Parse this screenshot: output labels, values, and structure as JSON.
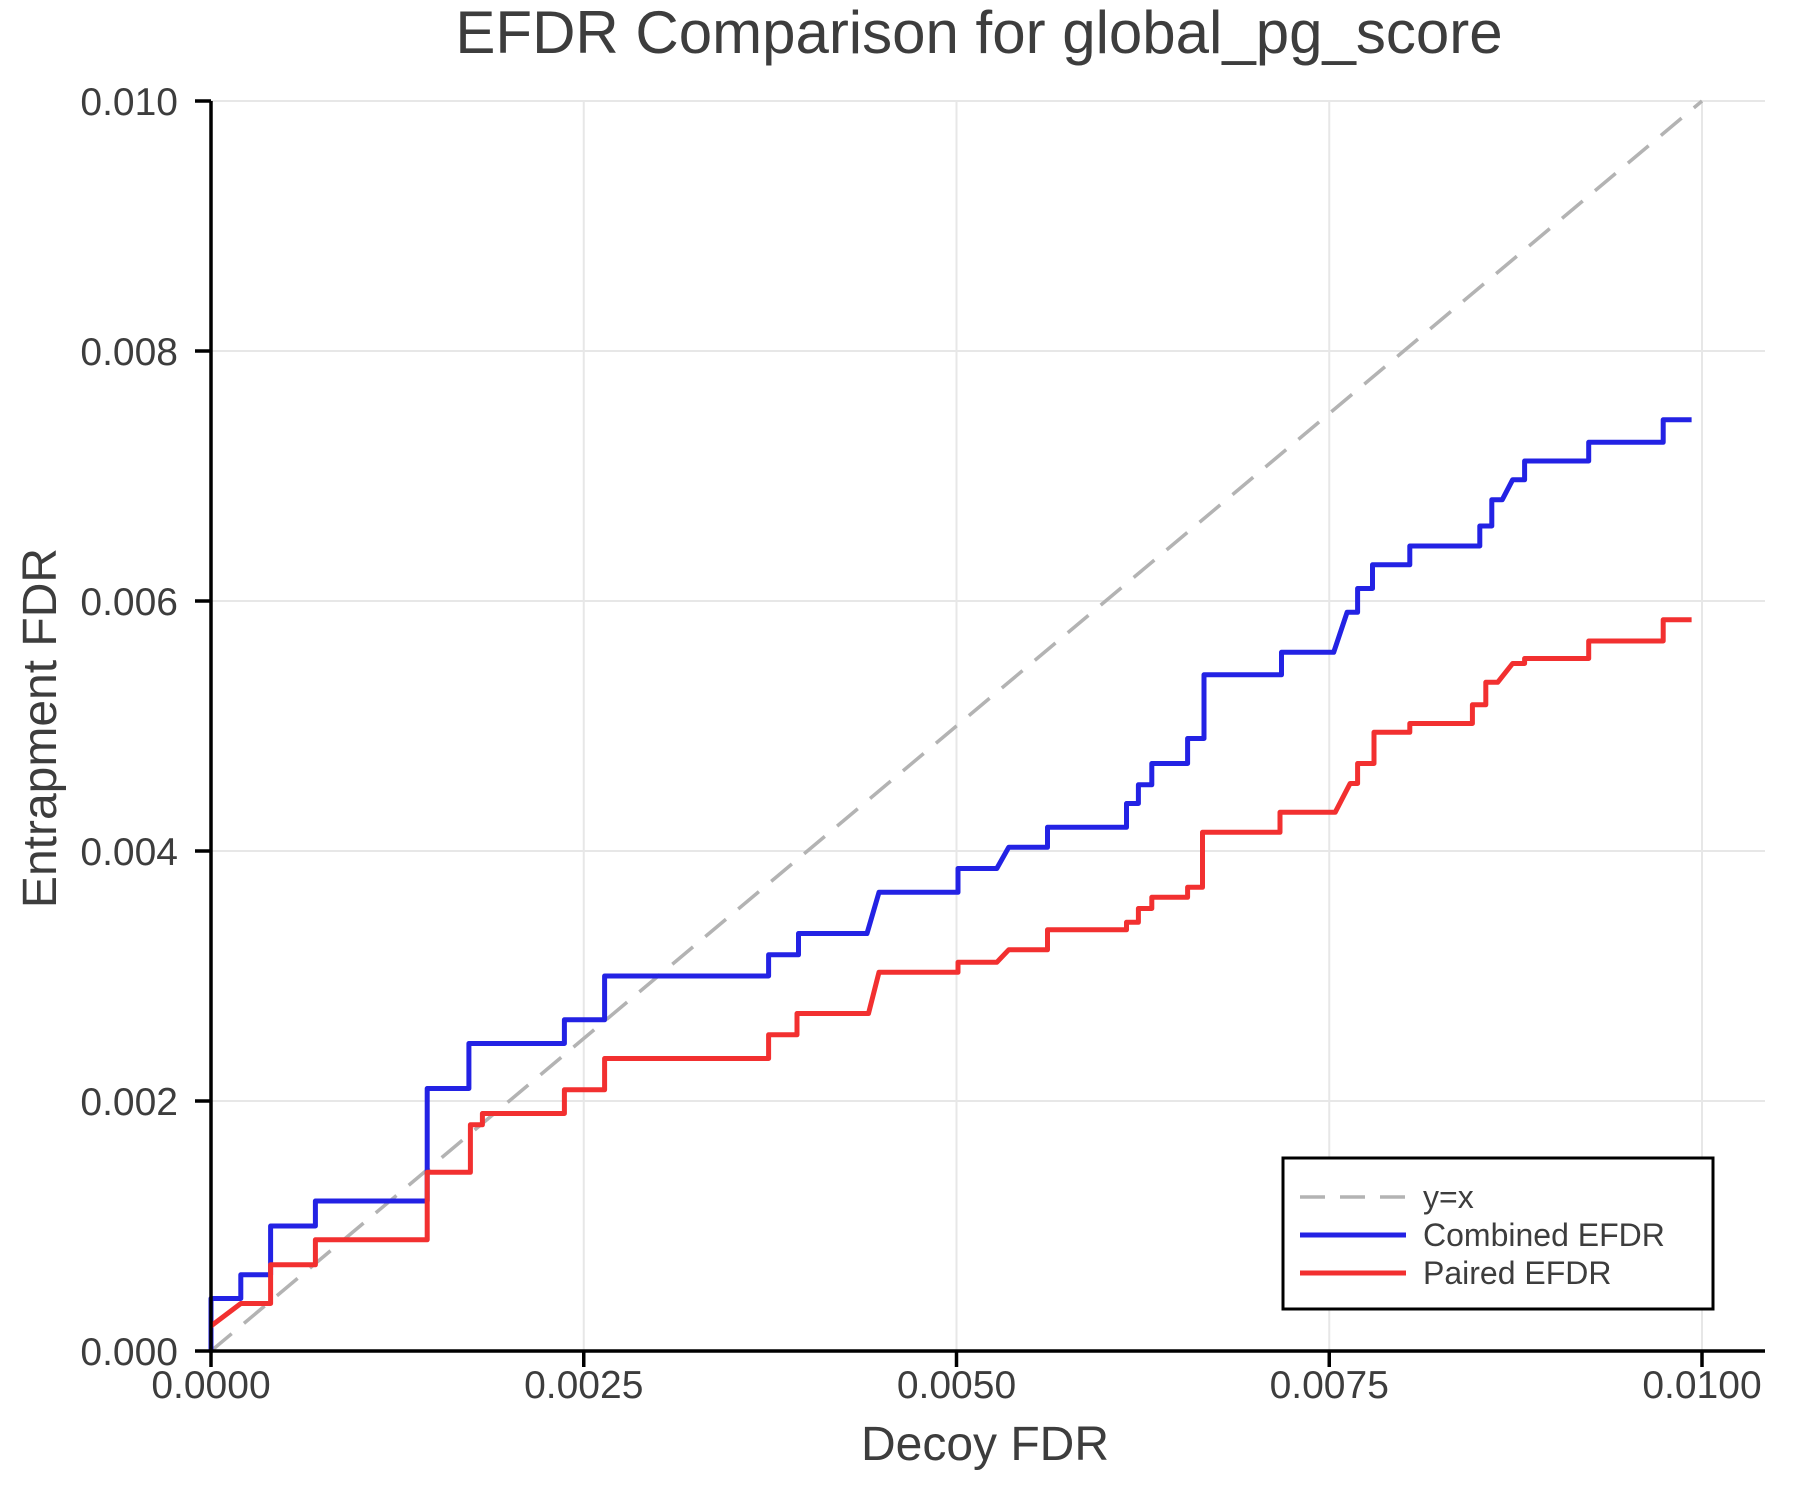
{
  "chart_data": {
    "type": "line",
    "title": "EFDR Comparison for global_pg_score",
    "xlabel": "Decoy FDR",
    "ylabel": "Entrapment FDR",
    "xlim": [
      0.0,
      0.01042
    ],
    "ylim": [
      0.0,
      0.01
    ],
    "grid": true,
    "legend_position": "lower right",
    "x_ticks": [
      0.0,
      0.0025,
      0.005,
      0.0075,
      0.01
    ],
    "x_tick_labels": [
      "0.0000",
      "0.0025",
      "0.0050",
      "0.0075",
      "0.0100"
    ],
    "y_ticks": [
      0.0,
      0.002,
      0.004,
      0.006,
      0.008,
      0.01
    ],
    "y_tick_labels": [
      "0.000",
      "0.002",
      "0.004",
      "0.006",
      "0.008",
      "0.010"
    ],
    "colors": {
      "grid": "#e7e7e7",
      "spine": "#000000",
      "tick_label": "#3d3d3d",
      "title": "#3d3d3d",
      "axis_label": "#3d3d3d",
      "legend_border": "#000000"
    },
    "series": [
      {
        "name": "y=x",
        "style": "dashed",
        "color": "#b3b3b3",
        "points": [
          [
            0.0,
            0.0
          ],
          [
            0.01,
            0.01
          ]
        ]
      },
      {
        "name": "Combined EFDR",
        "style": "solid",
        "color": "#2322e4",
        "points": [
          [
            0,
            0
          ],
          [
            0,
            0.00042
          ],
          [
            0.0002,
            0.00042
          ],
          [
            0.0002,
            0.00061
          ],
          [
            0.0004,
            0.00061
          ],
          [
            0.0004,
            0.001
          ],
          [
            0.0007,
            0.001
          ],
          [
            0.0007,
            0.0012
          ],
          [
            0.00145,
            0.0012
          ],
          [
            0.00145,
            0.0021
          ],
          [
            0.00173,
            0.0021
          ],
          [
            0.00173,
            0.00246
          ],
          [
            0.00237,
            0.00246
          ],
          [
            0.00237,
            0.00265
          ],
          [
            0.00264,
            0.00265
          ],
          [
            0.00264,
            0.003
          ],
          [
            0.00374,
            0.003
          ],
          [
            0.00374,
            0.00317
          ],
          [
            0.00394,
            0.00317
          ],
          [
            0.00394,
            0.00334
          ],
          [
            0.0044,
            0.00334
          ],
          [
            0.00448,
            0.00367
          ],
          [
            0.00501,
            0.00367
          ],
          [
            0.00501,
            0.00386
          ],
          [
            0.00527,
            0.00386
          ],
          [
            0.00535,
            0.00403
          ],
          [
            0.00561,
            0.00403
          ],
          [
            0.00561,
            0.00419
          ],
          [
            0.00614,
            0.00419
          ],
          [
            0.00614,
            0.00438
          ],
          [
            0.00622,
            0.00438
          ],
          [
            0.00622,
            0.00453
          ],
          [
            0.00631,
            0.00453
          ],
          [
            0.00631,
            0.0047
          ],
          [
            0.00655,
            0.0047
          ],
          [
            0.00655,
            0.0049
          ],
          [
            0.00666,
            0.0049
          ],
          [
            0.00666,
            0.00541
          ],
          [
            0.00718,
            0.00541
          ],
          [
            0.00718,
            0.00559
          ],
          [
            0.00753,
            0.00559
          ],
          [
            0.00762,
            0.00591
          ],
          [
            0.00769,
            0.00591
          ],
          [
            0.00769,
            0.0061
          ],
          [
            0.00779,
            0.0061
          ],
          [
            0.00779,
            0.00629
          ],
          [
            0.00804,
            0.00629
          ],
          [
            0.00804,
            0.00644
          ],
          [
            0.00851,
            0.00644
          ],
          [
            0.00851,
            0.0066
          ],
          [
            0.00859,
            0.0066
          ],
          [
            0.00859,
            0.00681
          ],
          [
            0.00866,
            0.00681
          ],
          [
            0.00873,
            0.00697
          ],
          [
            0.00881,
            0.00697
          ],
          [
            0.00881,
            0.00712
          ],
          [
            0.00924,
            0.00712
          ],
          [
            0.00924,
            0.00727
          ],
          [
            0.00974,
            0.00727
          ],
          [
            0.00974,
            0.00745
          ],
          [
            0.00993,
            0.00745
          ]
        ]
      },
      {
        "name": "Paired EFDR",
        "style": "solid",
        "color": "#f23030",
        "points": [
          [
            0,
            0.0002
          ],
          [
            0.0002,
            0.00038
          ],
          [
            0.0004,
            0.00038
          ],
          [
            0.0004,
            0.00069
          ],
          [
            0.0007,
            0.00069
          ],
          [
            0.0007,
            0.00089
          ],
          [
            0.00145,
            0.00089
          ],
          [
            0.00145,
            0.00143
          ],
          [
            0.00174,
            0.00143
          ],
          [
            0.00174,
            0.00181
          ],
          [
            0.00182,
            0.00181
          ],
          [
            0.00182,
            0.0019
          ],
          [
            0.00237,
            0.0019
          ],
          [
            0.00237,
            0.00209
          ],
          [
            0.00264,
            0.00209
          ],
          [
            0.00264,
            0.00234
          ],
          [
            0.00374,
            0.00234
          ],
          [
            0.00374,
            0.00253
          ],
          [
            0.00393,
            0.00253
          ],
          [
            0.00393,
            0.0027
          ],
          [
            0.00441,
            0.0027
          ],
          [
            0.00448,
            0.00303
          ],
          [
            0.00501,
            0.00303
          ],
          [
            0.00501,
            0.00311
          ],
          [
            0.00527,
            0.00311
          ],
          [
            0.00535,
            0.00321
          ],
          [
            0.00561,
            0.00321
          ],
          [
            0.00561,
            0.00337
          ],
          [
            0.00614,
            0.00337
          ],
          [
            0.00614,
            0.00343
          ],
          [
            0.00622,
            0.00343
          ],
          [
            0.00622,
            0.00354
          ],
          [
            0.00631,
            0.00354
          ],
          [
            0.00631,
            0.00363
          ],
          [
            0.00655,
            0.00363
          ],
          [
            0.00655,
            0.00371
          ],
          [
            0.00665,
            0.00371
          ],
          [
            0.00665,
            0.00415
          ],
          [
            0.00717,
            0.00415
          ],
          [
            0.00717,
            0.00431
          ],
          [
            0.00754,
            0.00431
          ],
          [
            0.00764,
            0.00454
          ],
          [
            0.00769,
            0.00454
          ],
          [
            0.00769,
            0.0047
          ],
          [
            0.0078,
            0.0047
          ],
          [
            0.0078,
            0.00495
          ],
          [
            0.00804,
            0.00495
          ],
          [
            0.00804,
            0.00502
          ],
          [
            0.00846,
            0.00502
          ],
          [
            0.00846,
            0.00517
          ],
          [
            0.00855,
            0.00517
          ],
          [
            0.00855,
            0.00535
          ],
          [
            0.00863,
            0.00535
          ],
          [
            0.00873,
            0.0055
          ],
          [
            0.00881,
            0.0055
          ],
          [
            0.00881,
            0.00554
          ],
          [
            0.00924,
            0.00554
          ],
          [
            0.00924,
            0.00568
          ],
          [
            0.00974,
            0.00568
          ],
          [
            0.00974,
            0.00585
          ],
          [
            0.00993,
            0.00585
          ]
        ]
      }
    ]
  }
}
